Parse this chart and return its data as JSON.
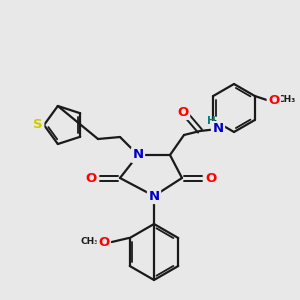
{
  "bg_color": "#e8e8e8",
  "bond_color": "#1a1a1a",
  "bond_width": 1.6,
  "N_color": "#0000cc",
  "O_color": "#ff0000",
  "S_color": "#cccc00",
  "H_color": "#008080",
  "font_size": 8.5,
  "fig_size": [
    3.0,
    3.0
  ],
  "dpi": 100,
  "xlim": [
    0,
    300
  ],
  "ylim": [
    0,
    300
  ]
}
